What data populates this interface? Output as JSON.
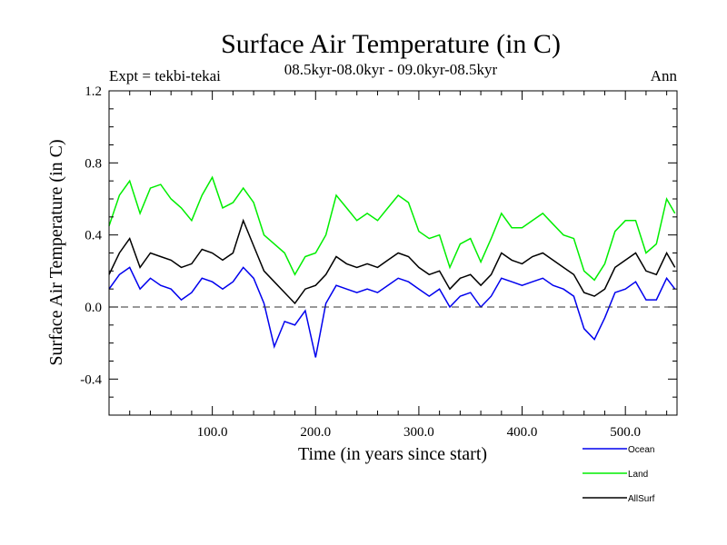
{
  "chart_data": {
    "type": "line",
    "title": "Surface Air Temperature (in C)",
    "subtitle": "08.5kyr-08.0kyr - 09.0kyr-08.5kyr",
    "expt_label": "Expt = tekbi-tekai",
    "season_label": "Ann",
    "xlabel": "Time (in years since start)",
    "ylabel": "Surface Air Temperature (in C)",
    "xlim": [
      0,
      550
    ],
    "ylim": [
      -0.6,
      1.2
    ],
    "x_ticks": [
      {
        "value": 100,
        "label": "100.0"
      },
      {
        "value": 200,
        "label": "200.0"
      },
      {
        "value": 300,
        "label": "300.0"
      },
      {
        "value": 400,
        "label": "400.0"
      },
      {
        "value": 500,
        "label": "500.0"
      }
    ],
    "y_ticks": [
      {
        "value": -0.4,
        "label": "-0.4"
      },
      {
        "value": 0.0,
        "label": "0.0"
      },
      {
        "value": 0.4,
        "label": "0.4"
      },
      {
        "value": 0.8,
        "label": "0.8"
      },
      {
        "value": 1.2,
        "label": "1.2"
      }
    ],
    "reference_line": 0.0,
    "series": [
      {
        "name": "Land",
        "color": "#00ee00",
        "x": [
          0,
          10,
          20,
          30,
          40,
          50,
          60,
          70,
          80,
          90,
          100,
          110,
          120,
          130,
          140,
          150,
          160,
          170,
          180,
          190,
          200,
          210,
          220,
          230,
          240,
          250,
          260,
          270,
          280,
          290,
          300,
          310,
          320,
          330,
          340,
          350,
          360,
          370,
          380,
          390,
          400,
          410,
          420,
          430,
          440,
          450,
          460,
          470,
          480,
          490,
          500,
          510,
          520,
          530,
          540,
          548
        ],
        "values": [
          0.45,
          0.62,
          0.7,
          0.52,
          0.66,
          0.68,
          0.6,
          0.55,
          0.48,
          0.62,
          0.72,
          0.55,
          0.58,
          0.66,
          0.58,
          0.4,
          0.35,
          0.3,
          0.18,
          0.28,
          0.3,
          0.4,
          0.62,
          0.55,
          0.48,
          0.52,
          0.48,
          0.55,
          0.62,
          0.58,
          0.42,
          0.38,
          0.4,
          0.22,
          0.35,
          0.38,
          0.25,
          0.38,
          0.52,
          0.44,
          0.44,
          0.48,
          0.52,
          0.46,
          0.4,
          0.38,
          0.2,
          0.15,
          0.24,
          0.42,
          0.48,
          0.48,
          0.3,
          0.35,
          0.6,
          0.52
        ]
      },
      {
        "name": "AllSurf",
        "color": "#000000",
        "x": [
          0,
          10,
          20,
          30,
          40,
          50,
          60,
          70,
          80,
          90,
          100,
          110,
          120,
          130,
          140,
          150,
          160,
          170,
          180,
          190,
          200,
          210,
          220,
          230,
          240,
          250,
          260,
          270,
          280,
          290,
          300,
          310,
          320,
          330,
          340,
          350,
          360,
          370,
          380,
          390,
          400,
          410,
          420,
          430,
          440,
          450,
          460,
          470,
          480,
          490,
          500,
          510,
          520,
          530,
          540,
          548
        ],
        "values": [
          0.18,
          0.3,
          0.38,
          0.22,
          0.3,
          0.28,
          0.26,
          0.22,
          0.24,
          0.32,
          0.3,
          0.26,
          0.3,
          0.48,
          0.34,
          0.2,
          0.14,
          0.08,
          0.02,
          0.1,
          0.12,
          0.18,
          0.28,
          0.24,
          0.22,
          0.24,
          0.22,
          0.26,
          0.3,
          0.28,
          0.22,
          0.18,
          0.2,
          0.1,
          0.16,
          0.18,
          0.12,
          0.18,
          0.3,
          0.26,
          0.24,
          0.28,
          0.3,
          0.26,
          0.22,
          0.18,
          0.08,
          0.06,
          0.1,
          0.22,
          0.26,
          0.3,
          0.2,
          0.18,
          0.3,
          0.22
        ]
      },
      {
        "name": "Ocean",
        "color": "#0000ee",
        "x": [
          0,
          10,
          20,
          30,
          40,
          50,
          60,
          70,
          80,
          90,
          100,
          110,
          120,
          130,
          140,
          150,
          160,
          170,
          180,
          190,
          200,
          210,
          220,
          230,
          240,
          250,
          260,
          270,
          280,
          290,
          300,
          310,
          320,
          330,
          340,
          350,
          360,
          370,
          380,
          390,
          400,
          410,
          420,
          430,
          440,
          450,
          460,
          470,
          480,
          490,
          500,
          510,
          520,
          530,
          540,
          548
        ],
        "values": [
          0.1,
          0.18,
          0.22,
          0.1,
          0.16,
          0.12,
          0.1,
          0.04,
          0.08,
          0.16,
          0.14,
          0.1,
          0.14,
          0.22,
          0.16,
          0.02,
          -0.22,
          -0.08,
          -0.1,
          -0.02,
          -0.28,
          0.02,
          0.12,
          0.1,
          0.08,
          0.1,
          0.08,
          0.12,
          0.16,
          0.14,
          0.1,
          0.06,
          0.1,
          0.0,
          0.06,
          0.08,
          0.0,
          0.06,
          0.16,
          0.14,
          0.12,
          0.14,
          0.16,
          0.12,
          0.1,
          0.06,
          -0.12,
          -0.18,
          -0.06,
          0.08,
          0.1,
          0.14,
          0.04,
          0.04,
          0.16,
          0.1
        ]
      }
    ]
  }
}
